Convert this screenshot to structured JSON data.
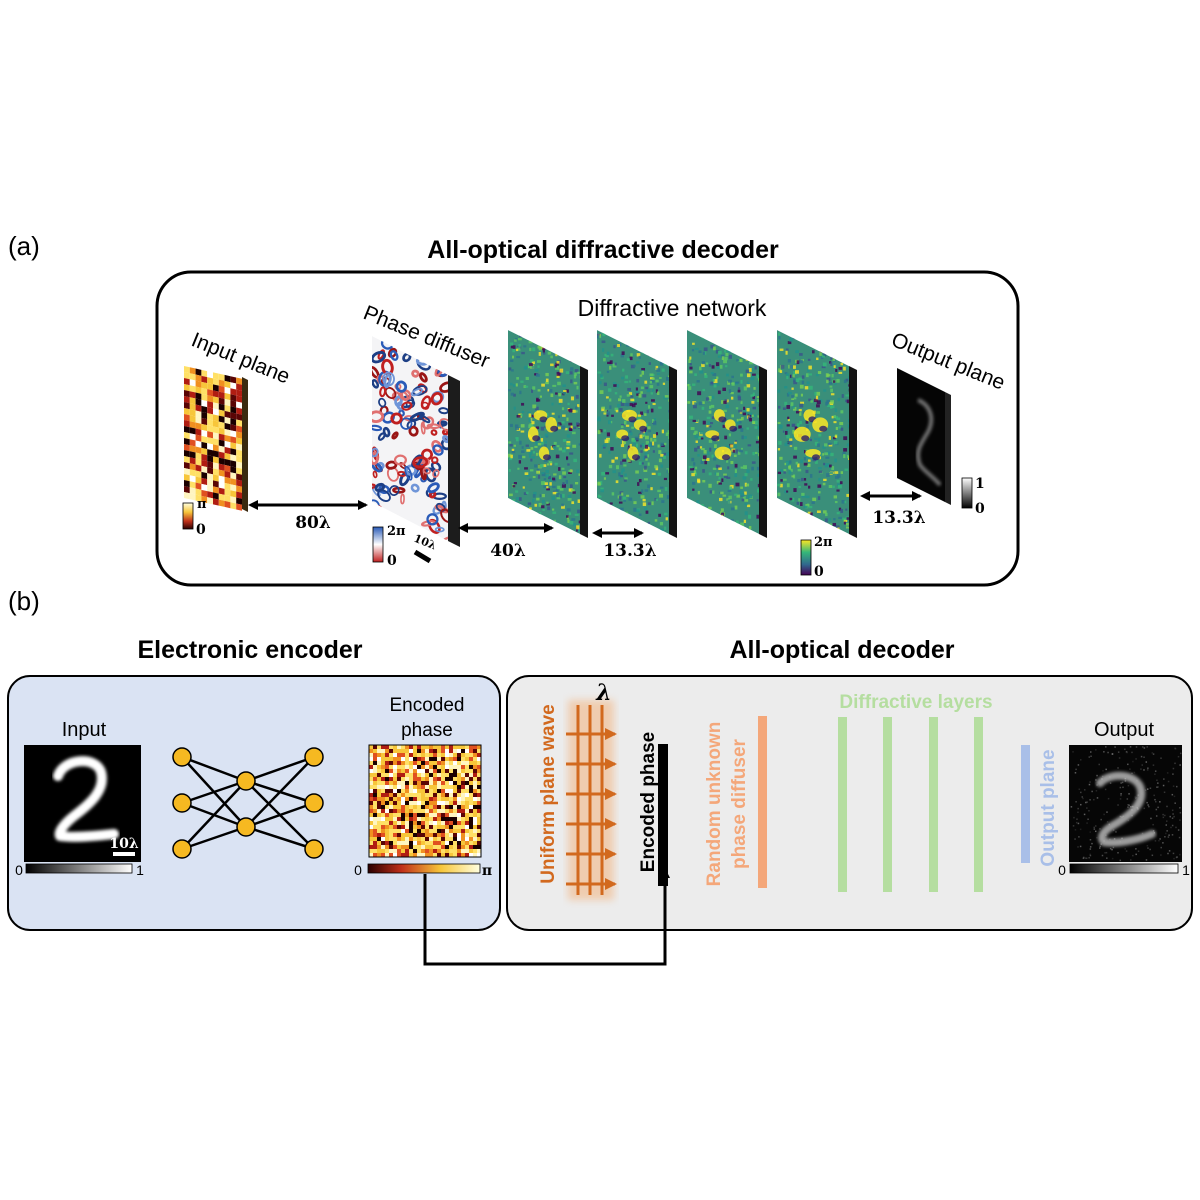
{
  "panel_a": {
    "label": "(a)",
    "title": "All-optical diffractive decoder",
    "input_plane": "Input plane",
    "phase_diffuser": "Phase diffuser",
    "diffractive_network": "Diffractive network",
    "output_plane": "Output plane",
    "distances": {
      "d1": "80λ",
      "d2": "40λ",
      "d3": "13.3λ",
      "d4": "13.3λ"
    },
    "scale_bar": "10λ",
    "colorbars": {
      "input": {
        "max": "π",
        "min": "0"
      },
      "diffuser": {
        "max": "2π",
        "min": "0"
      },
      "layers": {
        "max": "2π",
        "min": "0"
      },
      "output": {
        "max": "1",
        "min": "0"
      }
    }
  },
  "panel_b": {
    "label": "(b)",
    "encoder_title": "Electronic encoder",
    "decoder_title": "All-optical decoder",
    "input_label": "Input",
    "input_scale": "10λ",
    "input_cbar": {
      "min": "0",
      "max": "1"
    },
    "encoded_label_1": "Encoded",
    "encoded_label_2": "phase",
    "encoded_cbar": {
      "min": "0",
      "max": "π"
    },
    "lambda": "λ",
    "plane_wave": "Uniform plane wave",
    "encoded_phase_vertical": "Encoded phase",
    "diffuser_line1": "Random unknown",
    "diffuser_line2": "phase diffuser",
    "diffractive_layers": "Diffractive layers",
    "output_plane": "Output plane",
    "output_label": "Output",
    "output_cbar": {
      "min": "0",
      "max": "1"
    }
  },
  "colors": {
    "orange": "#d2691e",
    "diffuser_orange": "#f4a77a",
    "green_layers": "#b5dea0",
    "blue_output": "#a9bfe8",
    "encoder_bg": "#dae3f3",
    "decoder_bg": "#ececec",
    "node_fill": "#f6b921"
  }
}
